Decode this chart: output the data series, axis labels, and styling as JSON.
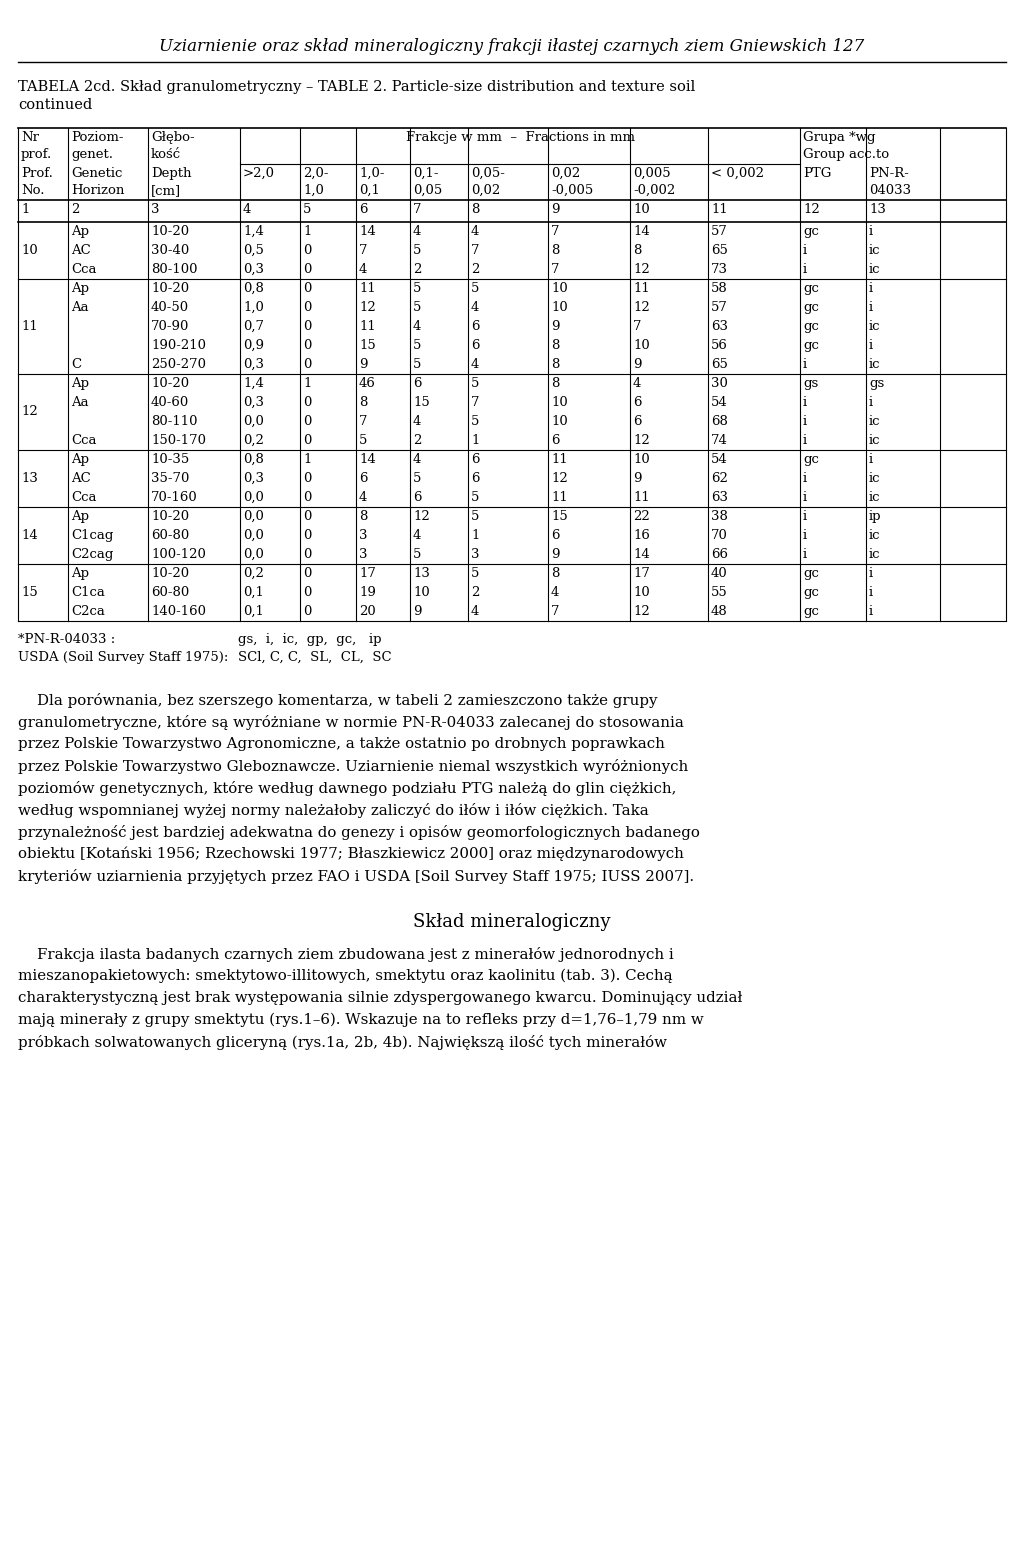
{
  "page_title": "Uziarnienie oraz skład mineralogiczny frakcji iłastej czarnych ziem Gniewskich 127",
  "table_caption_line1": "TABELA 2cd. Skład granulometryczny – TABLE 2. Particle-size distribution and texture soil",
  "table_caption_line2": "continued",
  "rows": [
    {
      "prof": "10",
      "horizons": [
        "Ap",
        "AC",
        "Cca"
      ],
      "depths": [
        "10-20",
        "30-40",
        "80-100"
      ],
      "c4": [
        "1,4",
        "0,5",
        "0,3"
      ],
      "c5": [
        "1",
        "0",
        "0"
      ],
      "c6": [
        "14",
        "7",
        "4"
      ],
      "c7": [
        "4",
        "5",
        "2"
      ],
      "c8": [
        "4",
        "7",
        "2"
      ],
      "c9": [
        "7",
        "8",
        "7"
      ],
      "c10": [
        "14",
        "8",
        "12"
      ],
      "c11": [
        "57",
        "65",
        "73"
      ],
      "c12": [
        "gc",
        "i",
        "i"
      ],
      "c13": [
        "i",
        "ic",
        "ic"
      ]
    },
    {
      "prof": "11",
      "horizons": [
        "Ap",
        "Aa",
        "",
        "",
        "C"
      ],
      "depths": [
        "10-20",
        "40-50",
        "70-90",
        "190-210",
        "250-270"
      ],
      "c4": [
        "0,8",
        "1,0",
        "0,7",
        "0,9",
        "0,3"
      ],
      "c5": [
        "0",
        "0",
        "0",
        "0",
        "0"
      ],
      "c6": [
        "11",
        "12",
        "11",
        "15",
        "9"
      ],
      "c7": [
        "5",
        "5",
        "4",
        "5",
        "5"
      ],
      "c8": [
        "5",
        "4",
        "6",
        "6",
        "4"
      ],
      "c9": [
        "10",
        "10",
        "9",
        "8",
        "8"
      ],
      "c10": [
        "11",
        "12",
        "7",
        "10",
        "9"
      ],
      "c11": [
        "58",
        "57",
        "63",
        "56",
        "65"
      ],
      "c12": [
        "gc",
        "gc",
        "gc",
        "gc",
        "i"
      ],
      "c13": [
        "i",
        "i",
        "ic",
        "i",
        "ic"
      ]
    },
    {
      "prof": "12",
      "horizons": [
        "Ap",
        "Aa",
        "",
        "Cca"
      ],
      "depths": [
        "10-20",
        "40-60",
        "80-110",
        "150-170"
      ],
      "c4": [
        "1,4",
        "0,3",
        "0,0",
        "0,2"
      ],
      "c5": [
        "1",
        "0",
        "0",
        "0"
      ],
      "c6": [
        "46",
        "8",
        "7",
        "5"
      ],
      "c7": [
        "6",
        "15",
        "4",
        "2"
      ],
      "c8": [
        "5",
        "7",
        "5",
        "1"
      ],
      "c9": [
        "8",
        "10",
        "10",
        "6"
      ],
      "c10": [
        "4",
        "6",
        "6",
        "12"
      ],
      "c11": [
        "30",
        "54",
        "68",
        "74"
      ],
      "c12": [
        "gs",
        "i",
        "i",
        "i"
      ],
      "c13": [
        "gs",
        "i",
        "ic",
        "ic"
      ]
    },
    {
      "prof": "13",
      "horizons": [
        "Ap",
        "AC",
        "Cca"
      ],
      "depths": [
        "10-35",
        "35-70",
        "70-160"
      ],
      "c4": [
        "0,8",
        "0,3",
        "0,0"
      ],
      "c5": [
        "1",
        "0",
        "0"
      ],
      "c6": [
        "14",
        "6",
        "4"
      ],
      "c7": [
        "4",
        "5",
        "6"
      ],
      "c8": [
        "6",
        "6",
        "5"
      ],
      "c9": [
        "11",
        "12",
        "11"
      ],
      "c10": [
        "10",
        "9",
        "11"
      ],
      "c11": [
        "54",
        "62",
        "63"
      ],
      "c12": [
        "gc",
        "i",
        "i"
      ],
      "c13": [
        "i",
        "ic",
        "ic"
      ]
    },
    {
      "prof": "14",
      "horizons": [
        "Ap",
        "C1cag",
        "C2cag"
      ],
      "depths": [
        "10-20",
        "60-80",
        "100-120"
      ],
      "c4": [
        "0,0",
        "0,0",
        "0,0"
      ],
      "c5": [
        "0",
        "0",
        "0"
      ],
      "c6": [
        "8",
        "3",
        "3"
      ],
      "c7": [
        "12",
        "4",
        "5"
      ],
      "c8": [
        "5",
        "1",
        "3"
      ],
      "c9": [
        "15",
        "6",
        "9"
      ],
      "c10": [
        "22",
        "16",
        "14"
      ],
      "c11": [
        "38",
        "70",
        "66"
      ],
      "c12": [
        "i",
        "i",
        "i"
      ],
      "c13": [
        "ip",
        "ic",
        "ic"
      ]
    },
    {
      "prof": "15",
      "horizons": [
        "Ap",
        "C1ca",
        "C2ca"
      ],
      "depths": [
        "10-20",
        "60-80",
        "140-160"
      ],
      "c4": [
        "0,2",
        "0,1",
        "0,1"
      ],
      "c5": [
        "0",
        "0",
        "0"
      ],
      "c6": [
        "17",
        "19",
        "20"
      ],
      "c7": [
        "13",
        "10",
        "9"
      ],
      "c8": [
        "5",
        "2",
        "4"
      ],
      "c9": [
        "8",
        "4",
        "7"
      ],
      "c10": [
        "17",
        "10",
        "12"
      ],
      "c11": [
        "40",
        "55",
        "48"
      ],
      "c12": [
        "gc",
        "gc",
        "gc"
      ],
      "c13": [
        "i",
        "i",
        "i"
      ]
    }
  ],
  "footnote1": "*PN-R-04033 :",
  "footnote1b": "gs,  i,  ic,  gp,  gc,   ip",
  "footnote2": "USDA (Soil Survey Staff 1975):",
  "footnote2b": "SCl, C, C,  SL,  CL,  SC",
  "body_text": [
    "    Dla porównania, bez szerszego komentarza, w tabeli 2 zamieszczono także grupy",
    "granulometryczne, które są wyróżniane w normie PN-R-04033 zalecanej do stosowania",
    "przez Polskie Towarzystwo Agronomiczne, a także ostatnio po drobnych poprawkach",
    "przez Polskie Towarzystwo Gleboznawcze. Uziarnienie niemal wszystkich wyróżnionych",
    "poziomów genetycznych, które według dawnego podziału PTG należą do glin ciężkich,",
    "według wspomnianej wyżej normy należałoby zaliczyć do iłów i iłów ciężkich. Taka",
    "przynależność jest bardziej adekwatna do genezy i opisów geomorfologicznych badanego",
    "obiektu [Kotański 1956; Rzechowski 1977; Błaszkiewicz 2000] oraz międzynarodowych",
    "kryteriów uziarnienia przyjętych przez FAO i USDA [Soil Survey Staff 1975; IUSS 2007]."
  ],
  "section_title": "Skład mineralogiczny",
  "section_text": [
    "    Frakcja ilasta badanych czarnych ziem zbudowana jest z minerałów jednorodnych i",
    "mieszanopakietowych: smektytowo-illitowych, smektytu oraz kaolinitu (tab. 3). Cechą",
    "charakterystyczną jest brak występowania silnie zdyspergowanego kwarcu. Dominujący udział",
    "mają minerały z grupy smektytu (rys.1–6). Wskazuje na to refleks przy d=1,76–1,79 nm w",
    "próbkach solwatowanych gliceryną (rys.1a, 2b, 4b). Największą ilość tych minerałów"
  ]
}
